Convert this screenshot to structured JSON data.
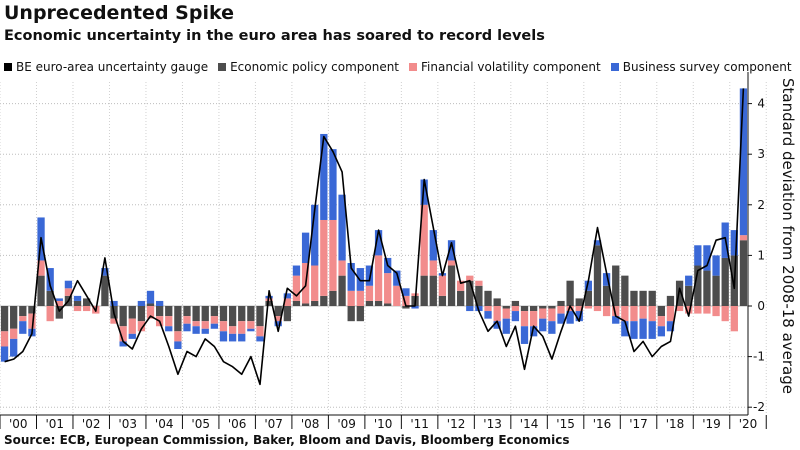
{
  "title": "Unprecedented Spike",
  "subtitle": "Economic uncertainty in the euro area has soared to record levels",
  "source": "Source: ECB, European Commission, Baker, Bloom and Davis, Bloomberg Economics",
  "chart_data": {
    "type": "bar",
    "stacked": true,
    "xlabel": "",
    "ylabel": "Standard deviation from 2008-18 average",
    "ylim": [
      -2,
      4.5
    ],
    "yticks": [
      -2,
      -1,
      0,
      1,
      2,
      3,
      4
    ],
    "ytick_labels": [
      "-2",
      "-1",
      "0",
      "1",
      "2",
      "3",
      "4"
    ],
    "grid": true,
    "legend_position": "top",
    "year_labels": [
      "'00",
      "'01",
      "'02",
      "'03",
      "'04",
      "'05",
      "'06",
      "'07",
      "'08",
      "'09",
      "'10",
      "'11",
      "'12",
      "'13",
      "'14",
      "'15",
      "'16",
      "'17",
      "'18",
      "'19",
      "'20"
    ],
    "categories": [
      "2000 Q1",
      "2000 Q2",
      "2000 Q3",
      "2000 Q4",
      "2001 Q1",
      "2001 Q2",
      "2001 Q3",
      "2001 Q4",
      "2002 Q1",
      "2002 Q2",
      "2002 Q3",
      "2002 Q4",
      "2003 Q1",
      "2003 Q2",
      "2003 Q3",
      "2003 Q4",
      "2004 Q1",
      "2004 Q2",
      "2004 Q3",
      "2004 Q4",
      "2005 Q1",
      "2005 Q2",
      "2005 Q3",
      "2005 Q4",
      "2006 Q1",
      "2006 Q2",
      "2006 Q3",
      "2006 Q4",
      "2007 Q1",
      "2007 Q2",
      "2007 Q3",
      "2007 Q4",
      "2008 Q1",
      "2008 Q2",
      "2008 Q3",
      "2008 Q4",
      "2009 Q1",
      "2009 Q2",
      "2009 Q3",
      "2009 Q4",
      "2010 Q1",
      "2010 Q2",
      "2010 Q3",
      "2010 Q4",
      "2011 Q1",
      "2011 Q2",
      "2011 Q3",
      "2011 Q4",
      "2012 Q1",
      "2012 Q2",
      "2012 Q3",
      "2012 Q4",
      "2013 Q1",
      "2013 Q2",
      "2013 Q3",
      "2013 Q4",
      "2014 Q1",
      "2014 Q2",
      "2014 Q3",
      "2014 Q4",
      "2015 Q1",
      "2015 Q2",
      "2015 Q3",
      "2015 Q4",
      "2016 Q1",
      "2016 Q2",
      "2016 Q3",
      "2016 Q4",
      "2017 Q1",
      "2017 Q2",
      "2017 Q3",
      "2017 Q4",
      "2018 Q1",
      "2018 Q2",
      "2018 Q3",
      "2018 Q4",
      "2019 Q1",
      "2019 Q2",
      "2019 Q3",
      "2019 Q4",
      "2020 Q1",
      "2020 Q2"
    ],
    "series": [
      {
        "name": "BE euro-area uncertainty gauge",
        "type": "line",
        "color": "#000000",
        "values": [
          -1.1,
          -1.05,
          -0.9,
          -0.55,
          1.35,
          0.4,
          -0.1,
          0.1,
          0.5,
          0.2,
          -0.1,
          0.95,
          -0.15,
          -0.7,
          -0.85,
          -0.45,
          -0.2,
          -0.3,
          -0.8,
          -1.35,
          -0.9,
          -1.0,
          -0.65,
          -0.8,
          -1.1,
          -1.2,
          -1.35,
          -1.0,
          -1.55,
          0.3,
          -0.5,
          0.35,
          0.2,
          0.4,
          1.9,
          3.35,
          3.05,
          2.65,
          0.75,
          0.5,
          0.5,
          1.5,
          0.8,
          0.65,
          0.0,
          0.0,
          2.5,
          1.55,
          0.6,
          1.25,
          0.45,
          0.5,
          -0.1,
          -0.5,
          -0.3,
          -0.8,
          -0.4,
          -1.25,
          -0.4,
          -0.6,
          -1.05,
          -0.5,
          0.0,
          -0.3,
          0.5,
          1.55,
          0.65,
          -0.2,
          -0.3,
          -0.9,
          -0.7,
          -1.0,
          -0.8,
          -0.7,
          0.35,
          -0.2,
          0.7,
          0.8,
          1.3,
          1.35,
          0.35,
          4.3
        ]
      },
      {
        "name": "Economic policy component",
        "color": "#4d4d4d",
        "values": [
          -0.5,
          -0.45,
          -0.2,
          -0.15,
          0.6,
          0.3,
          -0.25,
          0.2,
          0.1,
          0.15,
          0.0,
          0.6,
          -0.25,
          -0.4,
          -0.25,
          -0.3,
          0.05,
          -0.2,
          -0.2,
          -0.5,
          -0.2,
          -0.3,
          -0.3,
          -0.2,
          -0.3,
          -0.4,
          -0.3,
          -0.3,
          -0.4,
          0.1,
          -0.2,
          -0.3,
          0.1,
          0.05,
          0.1,
          0.2,
          0.3,
          0.6,
          -0.3,
          -0.3,
          0.1,
          0.1,
          0.05,
          0.0,
          -0.05,
          0.2,
          0.6,
          0.6,
          0.2,
          0.8,
          0.3,
          0.5,
          0.4,
          0.3,
          0.15,
          -0.05,
          0.1,
          -0.1,
          -0.1,
          -0.05,
          -0.05,
          0.1,
          0.5,
          0.15,
          0.3,
          1.2,
          0.4,
          0.8,
          0.6,
          0.3,
          0.3,
          0.3,
          -0.2,
          0.2,
          0.5,
          0.4,
          0.8,
          0.7,
          0.6,
          0.95,
          1.0,
          1.3
        ]
      },
      {
        "name": "Financial volatility component",
        "color": "#f28c8c",
        "values": [
          -0.3,
          -0.2,
          -0.1,
          -0.3,
          0.3,
          -0.3,
          0.1,
          0.15,
          -0.1,
          -0.1,
          -0.15,
          0.0,
          -0.1,
          -0.3,
          -0.3,
          -0.2,
          -0.25,
          -0.2,
          -0.2,
          -0.2,
          -0.15,
          -0.1,
          -0.15,
          -0.15,
          -0.2,
          -0.15,
          -0.25,
          -0.15,
          -0.2,
          0.05,
          -0.1,
          0.15,
          0.5,
          0.8,
          0.7,
          1.5,
          1.4,
          0.3,
          0.3,
          0.3,
          0.3,
          0.9,
          0.6,
          0.4,
          0.2,
          0.05,
          1.4,
          0.3,
          0.4,
          0.1,
          0.2,
          0.1,
          0.1,
          -0.1,
          -0.3,
          -0.2,
          -0.1,
          -0.3,
          -0.3,
          -0.2,
          -0.25,
          -0.15,
          -0.1,
          -0.1,
          -0.05,
          -0.1,
          -0.2,
          -0.2,
          -0.3,
          -0.3,
          -0.25,
          -0.3,
          -0.2,
          -0.3,
          -0.1,
          -0.15,
          -0.15,
          -0.15,
          -0.2,
          -0.3,
          -0.5,
          0.1
        ]
      },
      {
        "name": "Business survey component",
        "color": "#3a68d6",
        "values": [
          -0.3,
          -0.35,
          -0.25,
          -0.15,
          0.85,
          0.45,
          0.05,
          0.15,
          0.1,
          0.0,
          0.0,
          0.15,
          0.1,
          -0.1,
          -0.1,
          0.1,
          0.25,
          0.1,
          -0.1,
          -0.15,
          -0.15,
          -0.15,
          -0.1,
          -0.1,
          -0.2,
          -0.15,
          -0.15,
          -0.05,
          -0.1,
          0.05,
          -0.1,
          0.1,
          0.2,
          0.6,
          1.2,
          1.7,
          1.4,
          1.3,
          0.55,
          0.45,
          0.4,
          0.5,
          0.3,
          0.3,
          0.15,
          -0.05,
          0.5,
          0.6,
          0.05,
          0.4,
          0.0,
          -0.1,
          -0.1,
          -0.15,
          -0.15,
          -0.3,
          -0.2,
          -0.35,
          -0.2,
          -0.25,
          -0.25,
          -0.2,
          -0.25,
          -0.2,
          0.2,
          0.1,
          0.25,
          -0.15,
          -0.3,
          -0.35,
          -0.4,
          -0.35,
          -0.2,
          -0.2,
          0.0,
          0.2,
          0.4,
          0.5,
          0.4,
          0.7,
          0.5,
          2.9
        ]
      }
    ]
  }
}
